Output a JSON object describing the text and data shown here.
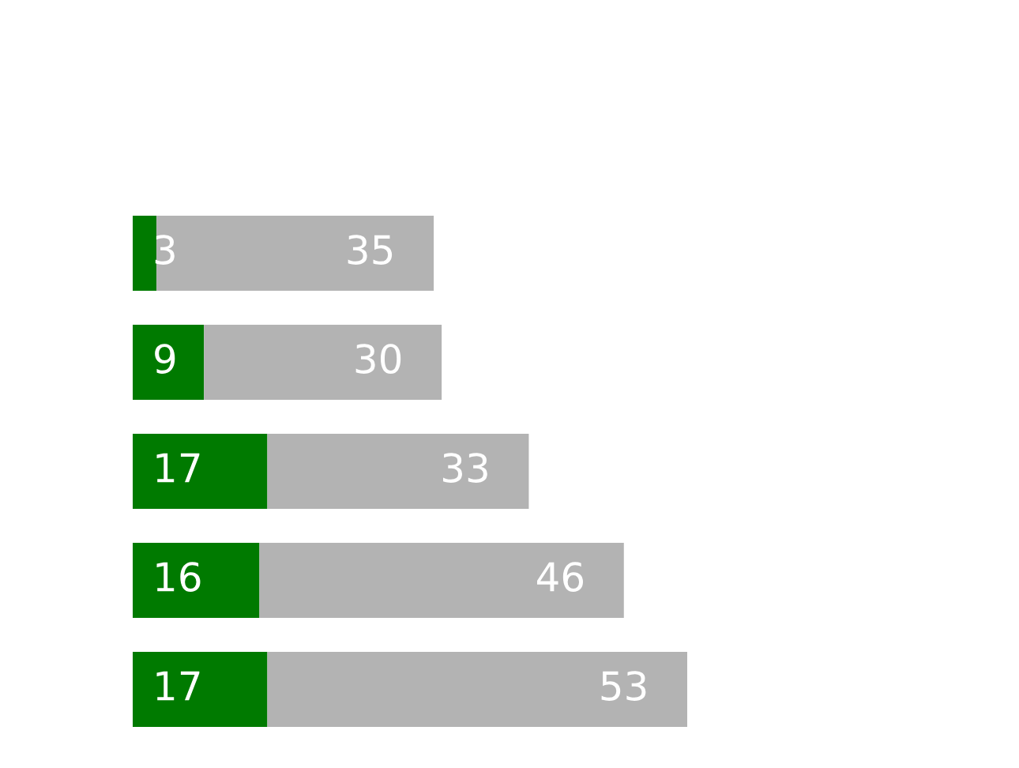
{
  "chart_data": {
    "type": "bar",
    "orientation": "horizontal",
    "stacked": true,
    "data_labels": true,
    "categories": [
      null,
      null,
      null,
      null,
      null
    ],
    "series": [
      {
        "color": "#007a00",
        "values": [
          3,
          9,
          17,
          16,
          17
        ]
      },
      {
        "color": "#b3b3b3",
        "values": [
          35,
          30,
          33,
          46,
          53
        ]
      }
    ]
  }
}
